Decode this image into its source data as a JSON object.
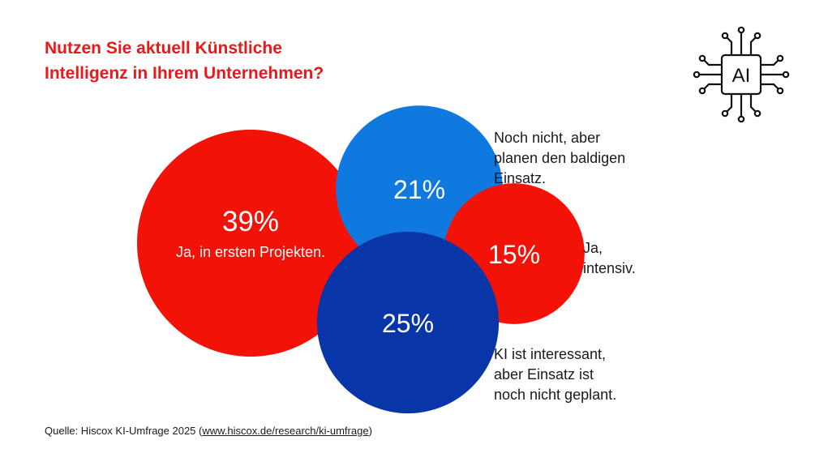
{
  "title": "Nutzen Sie aktuell Künstliche\nIntelligenz in Ihrem Unternehmen?",
  "icon": {
    "name": "ai-chip-icon",
    "text": "AI"
  },
  "colors": {
    "red": "#f21207",
    "blue_light": "#0f79e0",
    "blue_dark": "#0836a8",
    "title_red": "#e8191a",
    "inner_text": "#ffffff"
  },
  "chart_data": {
    "type": "bubble",
    "title": "Nutzen Sie aktuell Künstliche Intelligenz in Ihrem Unternehmen?",
    "series": [
      {
        "value": 39,
        "value_label": "39%",
        "label": "Ja, in ersten Projekten.",
        "color": "#f21207",
        "label_inside": true
      },
      {
        "value": 21,
        "value_label": "21%",
        "label": "Noch nicht, aber\nplanen den baldigen\nEinsatz.",
        "color": "#0f79e0",
        "label_inside": false
      },
      {
        "value": 15,
        "value_label": "15%",
        "label": "Ja,\nintensiv.",
        "color": "#f21207",
        "label_inside": false
      },
      {
        "value": 25,
        "value_label": "25%",
        "label": "KI ist interessant,\naber Einsatz ist\nnoch nicht geplant.",
        "color": "#0836a8",
        "label_inside": false
      }
    ]
  },
  "source": {
    "prefix": "Quelle: Hiscox KI-Umfrage 2025 (",
    "link": "www.hiscox.de/research/ki-umfrage",
    "suffix": ")"
  }
}
